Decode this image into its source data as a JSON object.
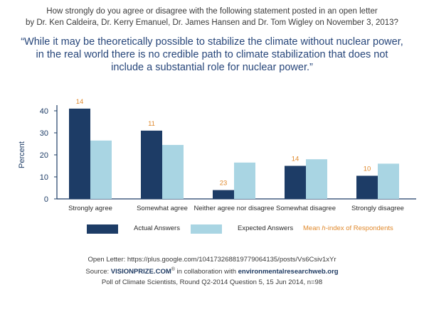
{
  "header": {
    "question_line1": "How strongly do you agree or disagree with the following statement posted in an open letter",
    "question_line2": "by Dr. Ken Caldeira, Dr. Kerry Emanuel, Dr. James Hansen and Dr. Tom Wigley on November 3, 2013?",
    "quote_line1": "“While it may be theoretically possible to stabilize the climate without nuclear power,",
    "quote_line2": "in the real world there is no credible path to climate stabilization that does not",
    "quote_line3": "include a substantial role for nuclear power.”"
  },
  "chart_data": {
    "type": "bar",
    "categories": [
      "Strongly agree",
      "Somewhat agree",
      "Neither agree nor disagree",
      "Somewhat disagree",
      "Strongly disagree"
    ],
    "series": [
      {
        "name": "Actual Answers",
        "values": [
          41,
          31,
          4,
          15,
          10.5
        ],
        "color": "#1d3c66"
      },
      {
        "name": "Expected Answers",
        "values": [
          26.5,
          24.5,
          16.5,
          18,
          16
        ],
        "color": "#a9d5e3"
      }
    ],
    "h_index": {
      "label": "Mean h-index of Respondents",
      "values": [
        14,
        11,
        23,
        14,
        10
      ],
      "color": "#e08a2e"
    },
    "ylabel": "Percent",
    "ylim": [
      0,
      40
    ],
    "yticks": [
      0,
      10,
      20,
      30,
      40
    ],
    "grid": false,
    "legend_position": "bottom"
  },
  "legend": {
    "actual_label": "Actual Answers",
    "expected_label": "Expected Answers",
    "hindex_prefix": "Mean ",
    "hindex_italic": "h",
    "hindex_suffix": "-index of Respondents"
  },
  "footer": {
    "open_letter": "Open Letter: https://plus.google.com/104173268819779064135/posts/Vs6Csiv1xYr",
    "source_prefix": "Source: ",
    "source_brand": "VISIONPRIZE.COM",
    "source_reg": "®",
    "source_mid": " in collaboration with ",
    "source_partner": "environmentalresearchweb.org",
    "poll": "Poll of Climate Scientists, Round Q2-2014 Question 5, 15 Jun 2014, n=98"
  }
}
